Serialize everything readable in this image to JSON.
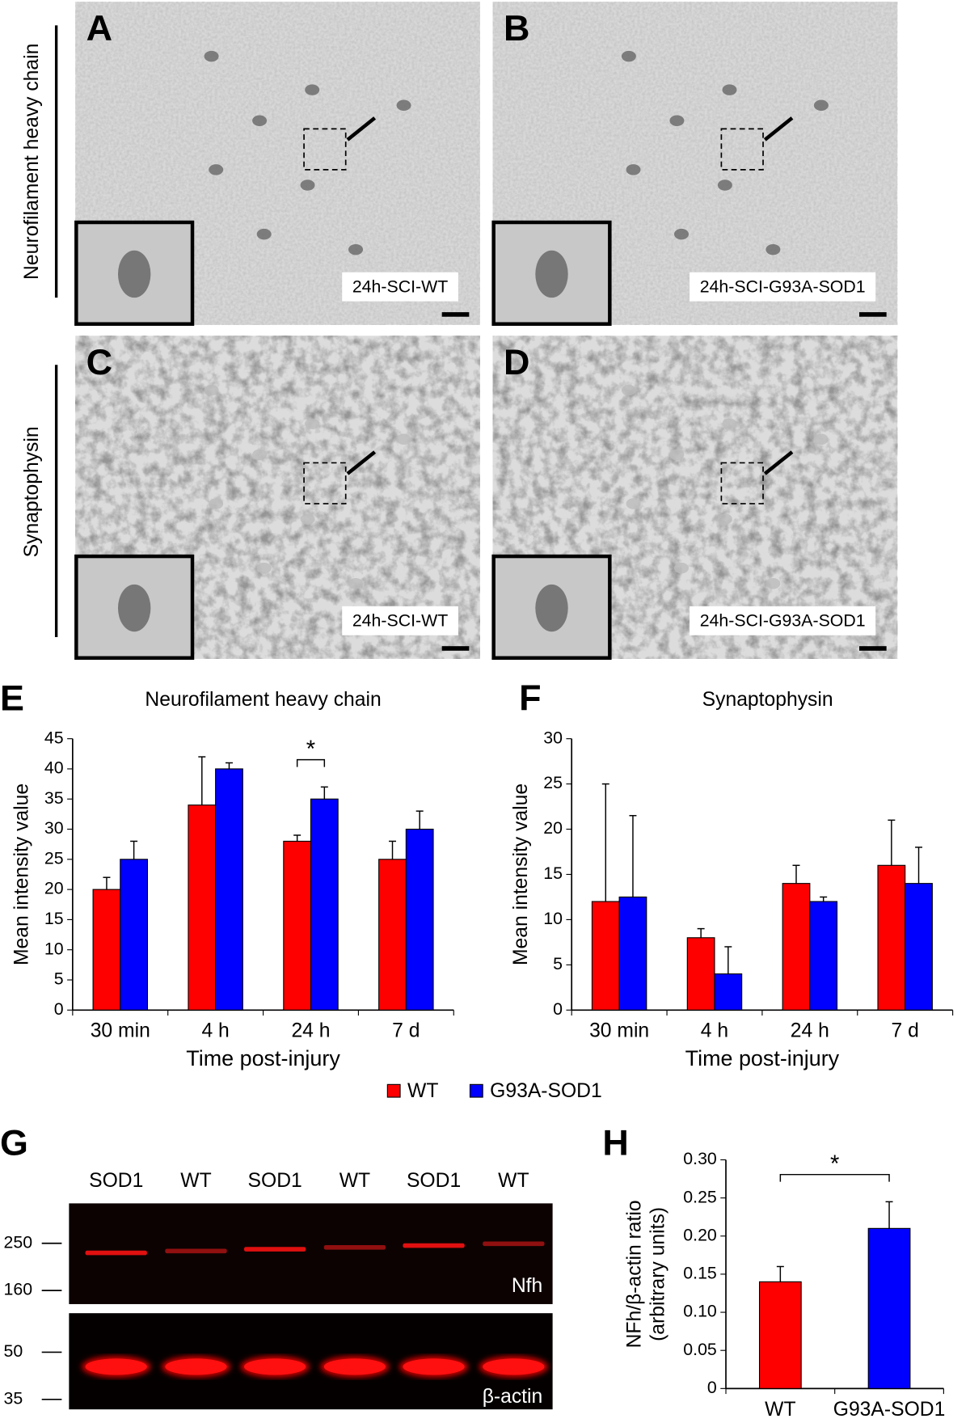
{
  "micrographs": [
    {
      "letter": "A",
      "label": "24h-SCI-WT"
    },
    {
      "letter": "B",
      "label": "24h-SCI-G93A-SOD1"
    },
    {
      "letter": "C",
      "label": "24h-SCI-WT"
    },
    {
      "letter": "D",
      "label": "24h-SCI-G93A-SOD1"
    }
  ],
  "row_labels": [
    "Neurofilament heavy chain",
    "Synaptophysin"
  ],
  "blot": {
    "letter": "G",
    "lanes": [
      "SOD1",
      "WT",
      "SOD1",
      "WT",
      "SOD1",
      "WT"
    ],
    "markers": [
      "250",
      "160",
      "50",
      "35"
    ],
    "bands": [
      "Nfh",
      "β-actin"
    ]
  },
  "chart_data": [
    {
      "panel": "E",
      "type": "bar",
      "title": "Neurofilament heavy chain",
      "categories": [
        "30 min",
        "4 h",
        "24 h",
        "7 d"
      ],
      "series": [
        {
          "name": "WT",
          "color": "#ff0000",
          "values": [
            20,
            34,
            28,
            25
          ],
          "errors": [
            2,
            8,
            1,
            3
          ]
        },
        {
          "name": "G93A-SOD1",
          "color": "#0000ff",
          "values": [
            25,
            40,
            35,
            30
          ],
          "errors": [
            3,
            1,
            2,
            3
          ]
        }
      ],
      "ylim": [
        0,
        45
      ],
      "yticks": [
        0,
        5,
        10,
        15,
        20,
        25,
        30,
        35,
        40,
        45
      ],
      "xlabel": "Time post-injury",
      "ylabel": "Mean intensity value",
      "annotation": "*"
    },
    {
      "panel": "F",
      "type": "bar",
      "title": "Synaptophysin",
      "categories": [
        "30 min",
        "4 h",
        "24 h",
        "7 d"
      ],
      "series": [
        {
          "name": "WT",
          "color": "#ff0000",
          "values": [
            12,
            8,
            14,
            16
          ],
          "errors": [
            13,
            1,
            2,
            5
          ]
        },
        {
          "name": "G93A-SOD1",
          "color": "#0000ff",
          "values": [
            12.5,
            4,
            12,
            14
          ],
          "errors": [
            9,
            3,
            0.5,
            4
          ]
        }
      ],
      "ylim": [
        0,
        30
      ],
      "yticks": [
        0,
        5,
        10,
        15,
        20,
        25,
        30
      ],
      "xlabel": "Time post-injury",
      "ylabel": "Mean intensity value"
    },
    {
      "panel": "H",
      "type": "bar",
      "categories": [
        "WT",
        "G93A-SOD1"
      ],
      "values": [
        0.14,
        0.21
      ],
      "errors": [
        0.02,
        0.035
      ],
      "colors": [
        "#ff0000",
        "#0000ff"
      ],
      "ylim": [
        0,
        0.3
      ],
      "yticks": [
        0,
        0.05,
        {
          "value": 0.1,
          "label": "0.10"
        },
        0.15,
        {
          "value": 0.2,
          "label": "0.20"
        },
        0.25,
        {
          "value": 0.3,
          "label": "0.30"
        }
      ],
      "ylabel": [
        "NFh/β-actin ratio",
        "(arbitrary units)"
      ],
      "annotation": "*"
    }
  ]
}
